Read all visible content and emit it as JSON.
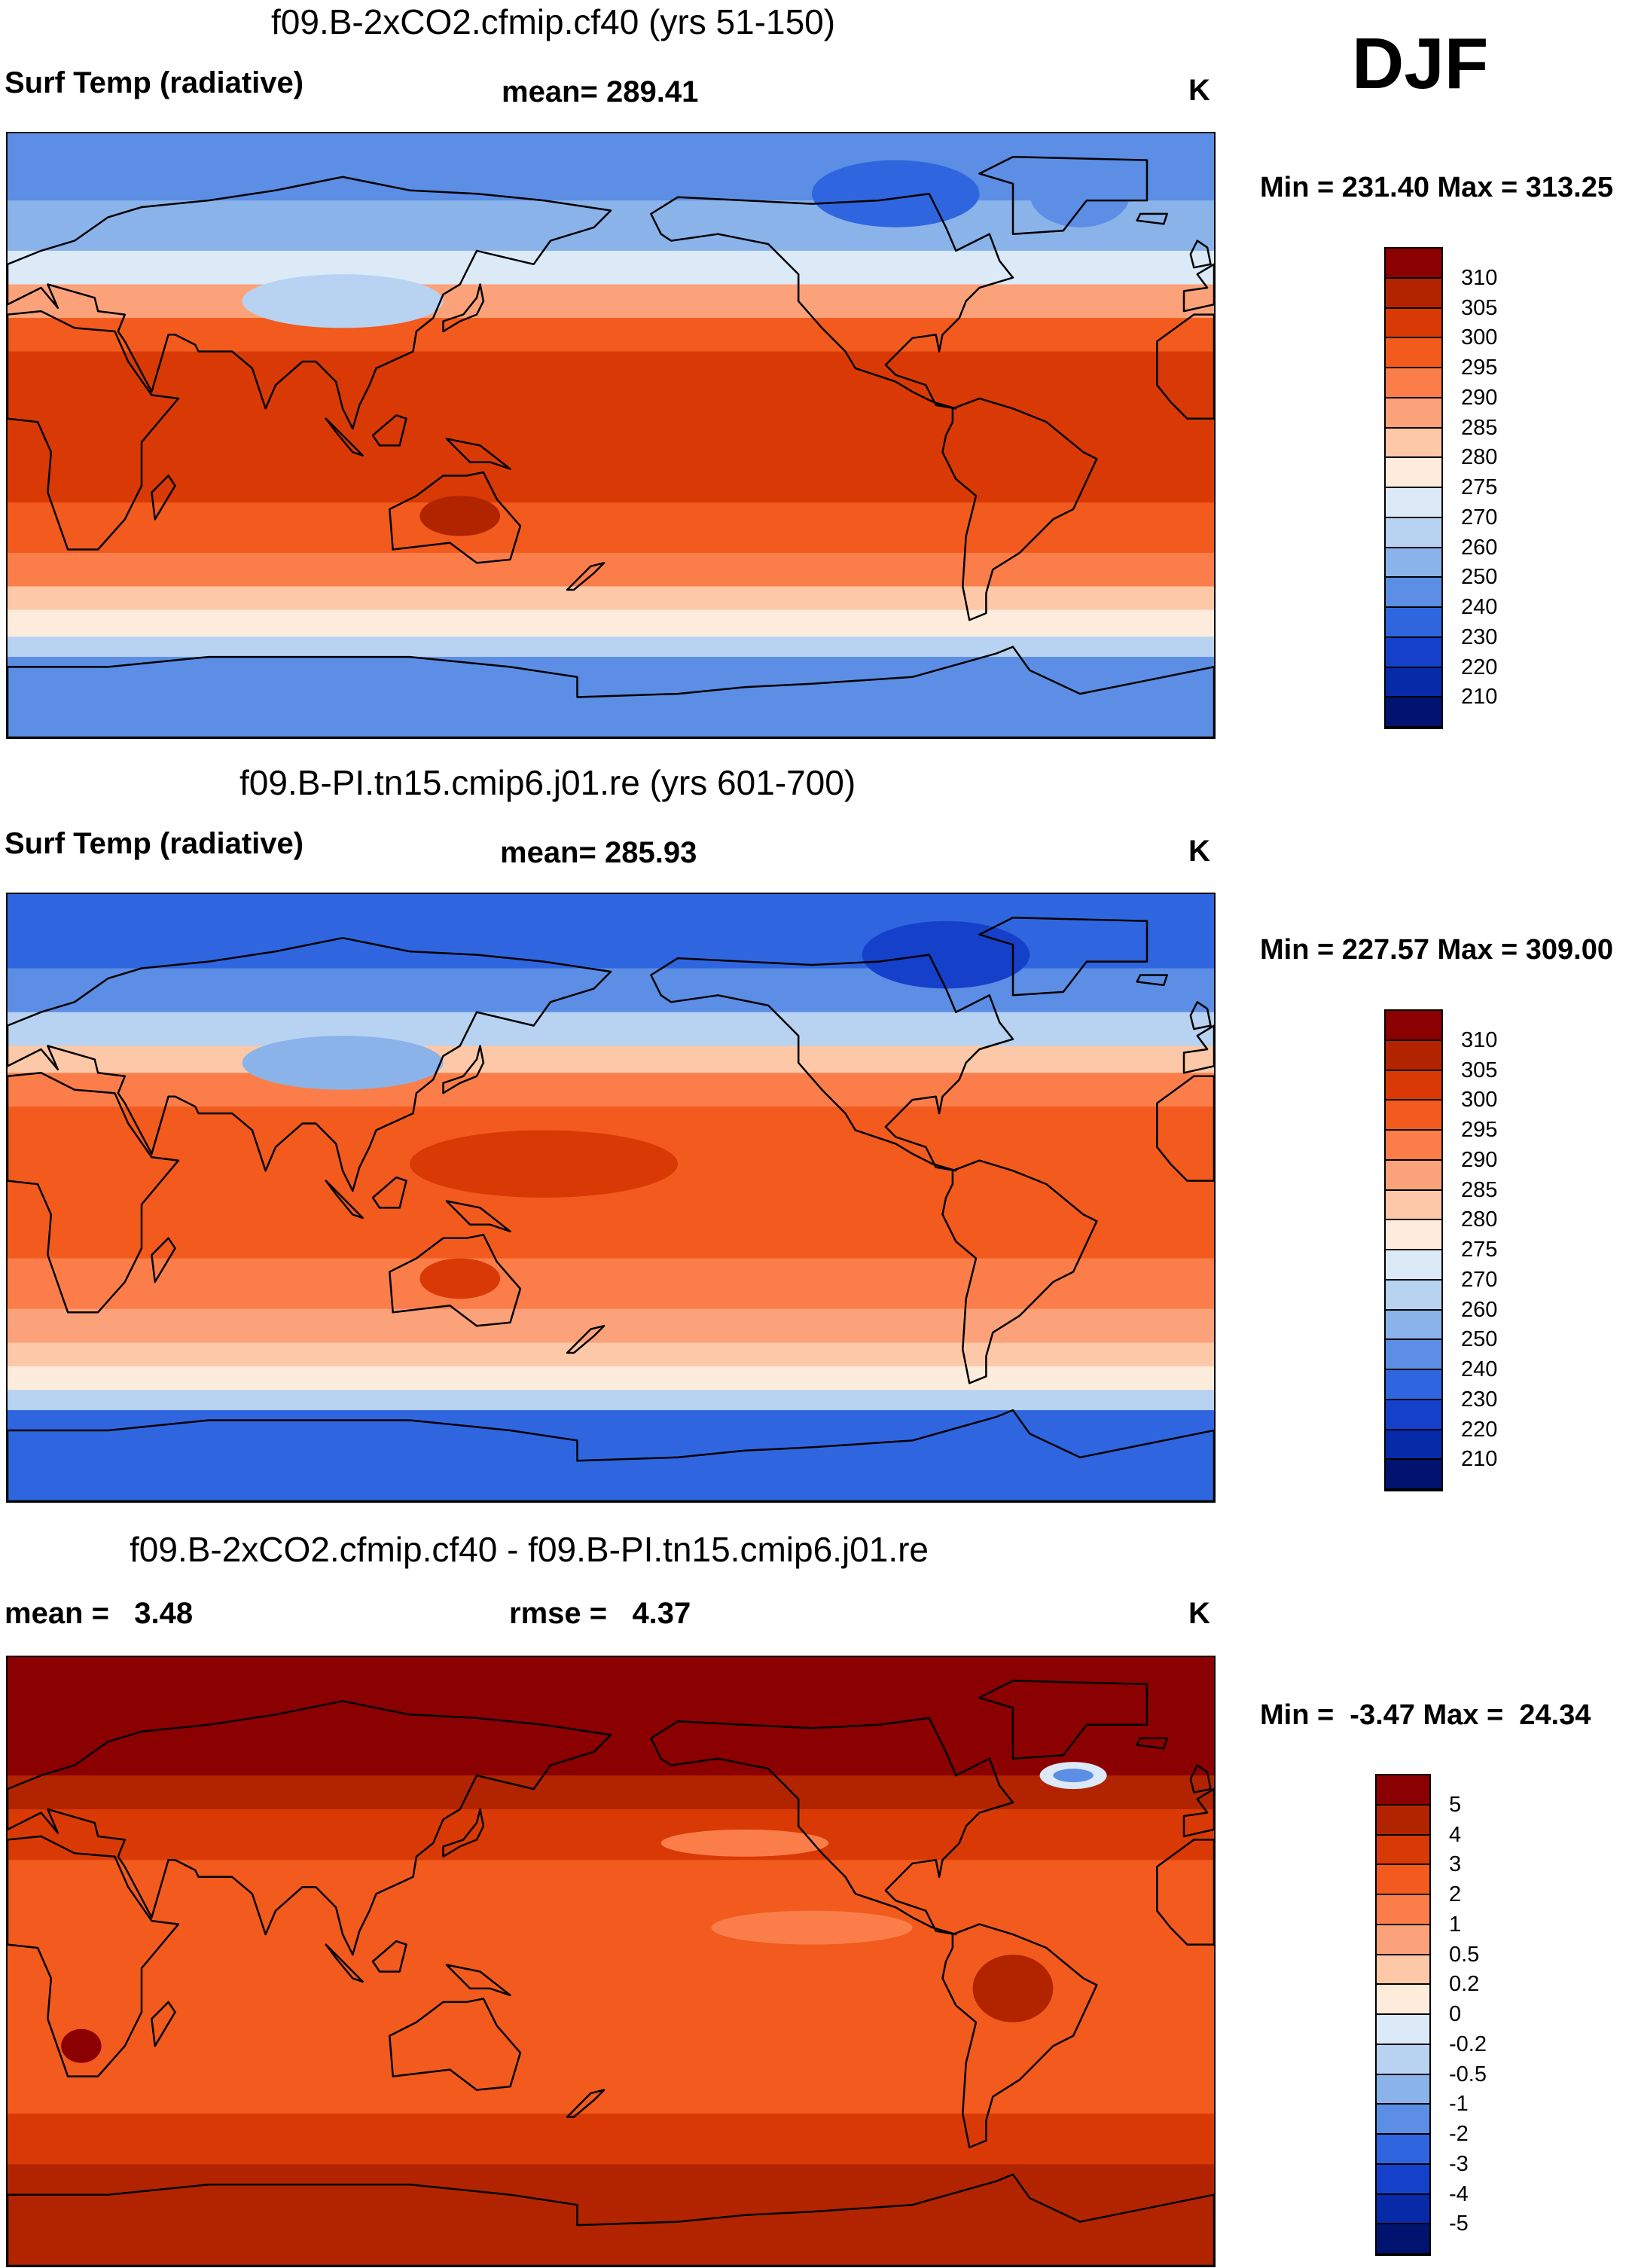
{
  "season": "DJF",
  "chart_data": [
    {
      "type": "heatmap",
      "title": "f09.B-2xCO2.cfmip.cf40 (yrs 51-150)",
      "field_label": "Surf Temp (radiative)",
      "stat_text": "mean= 289.41",
      "units": "K",
      "minmax_text": "Min = 231.40 Max = 313.25",
      "projection": "global cylindrical equidistant, Pacific-centered (lon 0 to 360)",
      "colorbar": {
        "levels": [
          "310",
          "305",
          "300",
          "295",
          "290",
          "285",
          "280",
          "275",
          "270",
          "260",
          "250",
          "240",
          "230",
          "220",
          "210"
        ],
        "colors": [
          "#8b0000",
          "#b22400",
          "#d93a05",
          "#f25a1e",
          "#fb7e4a",
          "#fca27a",
          "#fdc8a8",
          "#fdebdc",
          "#dce9f7",
          "#b8d2f1",
          "#8ab3ea",
          "#5b8ee4",
          "#2f66df",
          "#1540c9",
          "#072aa8",
          "#00146f"
        ]
      },
      "bands": [
        {
          "lat_from": 90,
          "lat_to": 70,
          "color": "#5b8ee4"
        },
        {
          "lat_from": 70,
          "lat_to": 55,
          "color": "#8ab3ea"
        },
        {
          "lat_from": 55,
          "lat_to": 45,
          "color": "#dce9f7"
        },
        {
          "lat_from": 45,
          "lat_to": 35,
          "color": "#fca27a"
        },
        {
          "lat_from": 35,
          "lat_to": 25,
          "color": "#f25a1e"
        },
        {
          "lat_from": 25,
          "lat_to": -20,
          "color": "#d93a05"
        },
        {
          "lat_from": -20,
          "lat_to": -35,
          "color": "#f25a1e"
        },
        {
          "lat_from": -35,
          "lat_to": -45,
          "color": "#fb7e4a"
        },
        {
          "lat_from": -45,
          "lat_to": -52,
          "color": "#fdc8a8"
        },
        {
          "lat_from": -52,
          "lat_to": -60,
          "color": "#fdebdc"
        },
        {
          "lat_from": -60,
          "lat_to": -66,
          "color": "#b8d2f1"
        },
        {
          "lat_from": -66,
          "lat_to": -90,
          "color": "#5b8ee4"
        }
      ],
      "patches": [
        {
          "lon": 100,
          "lat": 40,
          "rlon": 30,
          "rlat": 8,
          "color": "#b8d2f1"
        },
        {
          "lon": 265,
          "lat": 72,
          "rlon": 25,
          "rlat": 10,
          "color": "#2f66df"
        },
        {
          "lon": 320,
          "lat": 72,
          "rlon": 15,
          "rlat": 10,
          "color": "#5b8ee4"
        },
        {
          "lon": 135,
          "lat": -24,
          "rlon": 12,
          "rlat": 6,
          "color": "#b22400"
        },
        {
          "lon": 20,
          "lat": 0,
          "rlon": 15,
          "rlat": 15,
          "color": "#d93a05"
        }
      ]
    },
    {
      "type": "heatmap",
      "title": "f09.B-PI.tn15.cmip6.j01.re (yrs 601-700)",
      "field_label": "Surf Temp (radiative)",
      "stat_text": "mean= 285.93",
      "units": "K",
      "minmax_text": "Min = 227.57 Max = 309.00",
      "projection": "global cylindrical equidistant, Pacific-centered (lon 0 to 360)",
      "colorbar": {
        "levels": [
          "310",
          "305",
          "300",
          "295",
          "290",
          "285",
          "280",
          "275",
          "270",
          "260",
          "250",
          "240",
          "230",
          "220",
          "210"
        ],
        "colors": [
          "#8b0000",
          "#b22400",
          "#d93a05",
          "#f25a1e",
          "#fb7e4a",
          "#fca27a",
          "#fdc8a8",
          "#fdebdc",
          "#dce9f7",
          "#b8d2f1",
          "#8ab3ea",
          "#5b8ee4",
          "#2f66df",
          "#1540c9",
          "#072aa8",
          "#00146f"
        ]
      },
      "bands": [
        {
          "lat_from": 90,
          "lat_to": 68,
          "color": "#2f66df"
        },
        {
          "lat_from": 68,
          "lat_to": 55,
          "color": "#5b8ee4"
        },
        {
          "lat_from": 55,
          "lat_to": 45,
          "color": "#b8d2f1"
        },
        {
          "lat_from": 45,
          "lat_to": 37,
          "color": "#fdc8a8"
        },
        {
          "lat_from": 37,
          "lat_to": 27,
          "color": "#fb7e4a"
        },
        {
          "lat_from": 27,
          "lat_to": -18,
          "color": "#f25a1e"
        },
        {
          "lat_from": -18,
          "lat_to": -33,
          "color": "#fb7e4a"
        },
        {
          "lat_from": -33,
          "lat_to": -43,
          "color": "#fca27a"
        },
        {
          "lat_from": -43,
          "lat_to": -50,
          "color": "#fdc8a8"
        },
        {
          "lat_from": -50,
          "lat_to": -57,
          "color": "#fdebdc"
        },
        {
          "lat_from": -57,
          "lat_to": -63,
          "color": "#b8d2f1"
        },
        {
          "lat_from": -63,
          "lat_to": -90,
          "color": "#2f66df"
        }
      ],
      "patches": [
        {
          "lon": 100,
          "lat": 40,
          "rlon": 30,
          "rlat": 8,
          "color": "#8ab3ea"
        },
        {
          "lon": 160,
          "lat": 10,
          "rlon": 40,
          "rlat": 10,
          "color": "#d93a05"
        },
        {
          "lon": 280,
          "lat": 72,
          "rlon": 25,
          "rlat": 10,
          "color": "#1540c9"
        },
        {
          "lon": 135,
          "lat": -24,
          "rlon": 12,
          "rlat": 6,
          "color": "#d93a05"
        }
      ]
    },
    {
      "type": "heatmap",
      "title": "f09.B-2xCO2.cfmip.cf40 - f09.B-PI.tn15.cmip6.j01.re",
      "mean_text": "mean =   3.48",
      "rmse_text": "rmse =   4.37",
      "units": "K",
      "minmax_text": "Min =  -3.47 Max =  24.34",
      "projection": "global cylindrical equidistant, Pacific-centered (lon 0 to 360)",
      "colorbar": {
        "levels": [
          "5",
          "4",
          "3",
          "2",
          "1",
          "0.5",
          "0.2",
          "0",
          "-0.2",
          "-0.5",
          "-1",
          "-2",
          "-3",
          "-4",
          "-5"
        ],
        "colors": [
          "#8b0000",
          "#b22400",
          "#d93a05",
          "#f25a1e",
          "#fb7e4a",
          "#fca27a",
          "#fdc8a8",
          "#fdebdc",
          "#dce9f7",
          "#b8d2f1",
          "#8ab3ea",
          "#5b8ee4",
          "#2f66df",
          "#1540c9",
          "#072aa8",
          "#00146f"
        ]
      },
      "bands": [
        {
          "lat_from": 90,
          "lat_to": 55,
          "color": "#8b0000"
        },
        {
          "lat_from": 55,
          "lat_to": 45,
          "color": "#b22400"
        },
        {
          "lat_from": 45,
          "lat_to": 30,
          "color": "#d93a05"
        },
        {
          "lat_from": 30,
          "lat_to": -45,
          "color": "#f25a1e"
        },
        {
          "lat_from": -45,
          "lat_to": -60,
          "color": "#d93a05"
        },
        {
          "lat_from": -60,
          "lat_to": -90,
          "color": "#b22400"
        }
      ],
      "patches": [
        {
          "lon": 220,
          "lat": 35,
          "rlon": 25,
          "rlat": 4,
          "color": "#fb7e4a"
        },
        {
          "lon": 240,
          "lat": 10,
          "rlon": 30,
          "rlat": 5,
          "color": "#fb7e4a"
        },
        {
          "lon": 300,
          "lat": -8,
          "rlon": 12,
          "rlat": 10,
          "color": "#b22400"
        },
        {
          "lon": 22,
          "lat": -25,
          "rlon": 6,
          "rlat": 5,
          "color": "#8b0000"
        },
        {
          "lon": 318,
          "lat": 55,
          "rlon": 10,
          "rlat": 4,
          "color": "#dce9f7"
        },
        {
          "lon": 318,
          "lat": 55,
          "rlon": 6,
          "rlat": 2,
          "color": "#5b8ee4"
        }
      ]
    }
  ]
}
